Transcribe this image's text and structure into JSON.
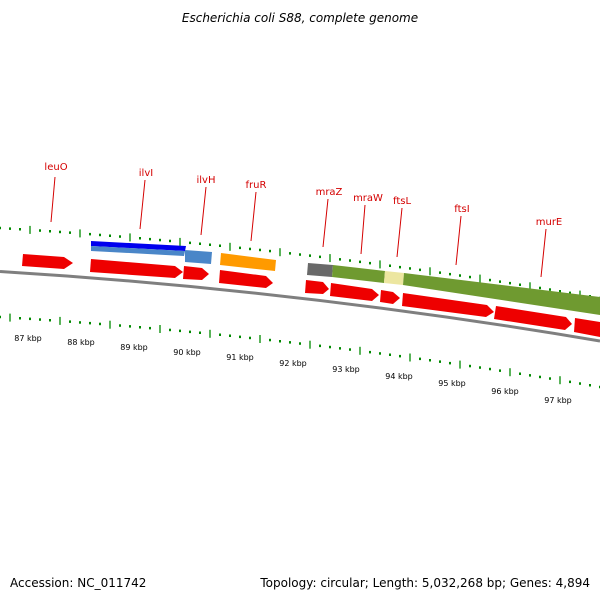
{
  "title": "Escherichia coli S88, complete genome",
  "accession_text": "Accession: NC_011742",
  "summary_text": "Topology: circular; Length: 5,032,268 bp; Genes: 4,894",
  "colors": {
    "gene_arrow": "#ee0000",
    "gene_label": "#d40000",
    "tick": "#008a00",
    "backbone": "#7f7f7f",
    "ilvI_band": "#0000ee",
    "ilvH_band": "#4a86c8",
    "fruR_band": "#ff9a00",
    "mraZ_band": "#696969",
    "mraW_band": "#6f9a30",
    "ftsL_band": "#ece6a0",
    "ftsI_band": "#6f9a30"
  },
  "gene_labels": [
    "leuO",
    "ilvI",
    "ilvH",
    "fruR",
    "mraZ",
    "mraW",
    "ftsL",
    "ftsI",
    "murE"
  ],
  "kbp_labels": [
    "87 kbp",
    "88 kbp",
    "89 kbp",
    "90 kbp",
    "91 kbp",
    "92 kbp",
    "93 kbp",
    "94 kbp",
    "95 kbp",
    "96 kbp",
    "97 kbp"
  ]
}
